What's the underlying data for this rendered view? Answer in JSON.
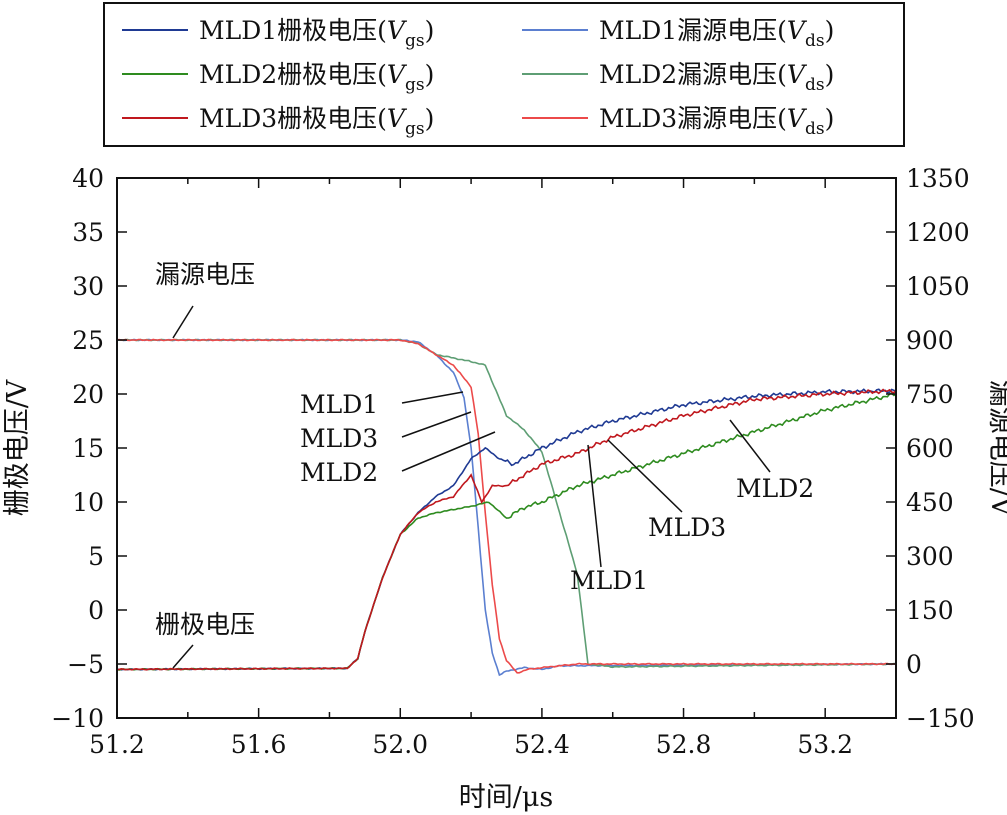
{
  "chart_data": {
    "type": "line",
    "xlabel": "时间/μs",
    "ylabel_left": "栅极电压/V",
    "ylabel_right": "漏源电压/V",
    "xlim": [
      51.2,
      53.4
    ],
    "ylim_left": [
      -10,
      40
    ],
    "ylim_right": [
      -150,
      1350
    ],
    "xticks": [
      "51.2",
      "51.6",
      "52.0",
      "52.4",
      "52.8",
      "53.2"
    ],
    "yticks_left": [
      "40",
      "35",
      "30",
      "25",
      "20",
      "15",
      "10",
      "5",
      "0",
      "-5",
      "-10"
    ],
    "yticks_right": [
      "1350",
      "1200",
      "1050",
      "900",
      "750",
      "600",
      "450",
      "300",
      "150",
      "0",
      "-150"
    ],
    "legend": [
      {
        "prefix": "MLD1栅极电压(",
        "var": "V",
        "sub": "gs",
        "suffix": ")"
      },
      {
        "prefix": "MLD1漏源电压(",
        "var": "V",
        "sub": "ds",
        "suffix": ")"
      },
      {
        "prefix": "MLD2栅极电压(",
        "var": "V",
        "sub": "gs",
        "suffix": ")"
      },
      {
        "prefix": "MLD2漏源电压(",
        "var": "V",
        "sub": "ds",
        "suffix": ")"
      },
      {
        "prefix": "MLD3栅极电压(",
        "var": "V",
        "sub": "gs",
        "suffix": ")"
      },
      {
        "prefix": "MLD3漏源电压(",
        "var": "V",
        "sub": "ds",
        "suffix": ")"
      }
    ],
    "annotations": {
      "vds_label": "漏源电压",
      "vgs_label": "栅极电压",
      "left_mld1": "MLD1",
      "left_mld3": "MLD3",
      "left_mld2": "MLD2",
      "right_mld1": "MLD1",
      "right_mld3": "MLD3",
      "right_mld2": "MLD2"
    },
    "colors": {
      "MLD1_vgs": "#1f3a93",
      "MLD2_vgs": "#2e8b1f",
      "MLD3_vgs": "#c0181e",
      "MLD1_vds": "#5b7fd0",
      "MLD2_vds": "#5e9e74",
      "MLD3_vds": "#ec4a4a"
    },
    "series": [
      {
        "name": "MLD1栅极电压",
        "axis": "left",
        "x": [
          51.2,
          51.85,
          51.88,
          51.9,
          51.95,
          52.0,
          52.05,
          52.1,
          52.15,
          52.2,
          52.24,
          52.28,
          52.32,
          52.4,
          52.5,
          52.6,
          52.8,
          53.0,
          53.2,
          53.4
        ],
        "y": [
          -5.5,
          -5.4,
          -4.5,
          -2,
          3,
          7,
          9,
          10.5,
          11.5,
          14,
          15,
          14,
          13.5,
          15,
          16.5,
          17.5,
          19,
          19.8,
          20.2,
          20.3
        ]
      },
      {
        "name": "MLD2栅极电压",
        "axis": "left",
        "x": [
          51.2,
          51.85,
          51.88,
          51.9,
          51.95,
          52.0,
          52.05,
          52.1,
          52.15,
          52.2,
          52.25,
          52.3,
          52.35,
          52.4,
          52.5,
          52.6,
          52.8,
          53.0,
          53.2,
          53.4
        ],
        "y": [
          -5.5,
          -5.4,
          -4.5,
          -2,
          3,
          7,
          8.5,
          9,
          9.3,
          9.6,
          10,
          8.5,
          9.5,
          10,
          11.5,
          12.5,
          14.5,
          16.5,
          18.5,
          20
        ]
      },
      {
        "name": "MLD3栅极电压",
        "axis": "left",
        "x": [
          51.2,
          51.85,
          51.88,
          51.9,
          51.95,
          52.0,
          52.05,
          52.1,
          52.15,
          52.2,
          52.23,
          52.26,
          52.3,
          52.4,
          52.5,
          52.6,
          52.8,
          53.0,
          53.2,
          53.4
        ],
        "y": [
          -5.5,
          -5.4,
          -4.5,
          -2,
          3,
          7,
          9,
          10,
          10.5,
          12.5,
          10,
          11.5,
          11.5,
          13.5,
          14.5,
          16,
          18,
          19.5,
          20,
          20.3
        ]
      },
      {
        "name": "MLD1漏源电压",
        "axis": "right",
        "x": [
          51.2,
          52.0,
          52.05,
          52.1,
          52.15,
          52.18,
          52.2,
          52.22,
          52.24,
          52.26,
          52.28,
          52.3,
          52.35,
          52.4,
          52.45,
          53.4
        ],
        "y": [
          900,
          900,
          895,
          860,
          810,
          740,
          600,
          380,
          150,
          30,
          -30,
          -20,
          -10,
          -15,
          -5,
          0
        ]
      },
      {
        "name": "MLD2漏源电压",
        "axis": "right",
        "x": [
          51.2,
          52.0,
          52.05,
          52.1,
          52.15,
          52.2,
          52.24,
          52.27,
          52.3,
          52.35,
          52.4,
          52.45,
          52.5,
          52.53,
          52.6,
          53.4
        ],
        "y": [
          900,
          900,
          890,
          860,
          850,
          840,
          830,
          760,
          690,
          650,
          590,
          420,
          250,
          0,
          -8,
          0
        ]
      },
      {
        "name": "MLD3漏源电压",
        "axis": "right",
        "x": [
          51.2,
          52.0,
          52.05,
          52.1,
          52.15,
          52.2,
          52.22,
          52.24,
          52.26,
          52.28,
          52.3,
          52.33,
          52.36,
          52.4,
          52.5,
          53.4
        ],
        "y": [
          900,
          900,
          890,
          860,
          830,
          770,
          640,
          420,
          220,
          70,
          10,
          -25,
          -15,
          -10,
          0,
          0
        ]
      }
    ]
  }
}
